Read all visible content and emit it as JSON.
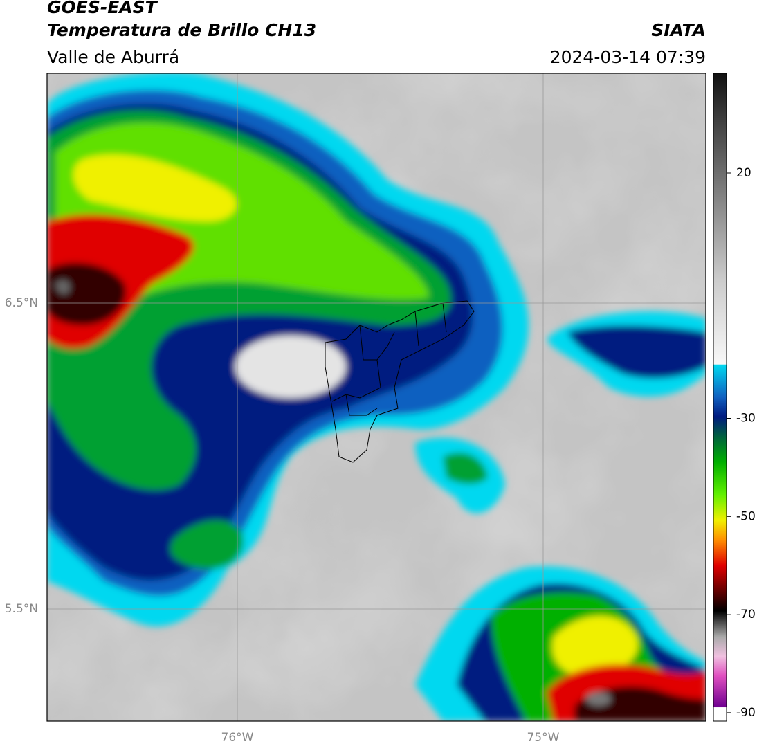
{
  "header": {
    "satellite": "GOES-EAST",
    "product": "Temperatura de Brillo CH13",
    "region": "Valle de Aburrá",
    "source": "SIATA",
    "datetime": "2024-03-14 07:39"
  },
  "map": {
    "lat_labels": [
      "6.5°N",
      "5.5°N"
    ],
    "lon_labels": [
      "76°W",
      "75°W"
    ]
  },
  "colorbar": {
    "ticks": [
      20,
      -30,
      -50,
      -70,
      -90
    ]
  }
}
